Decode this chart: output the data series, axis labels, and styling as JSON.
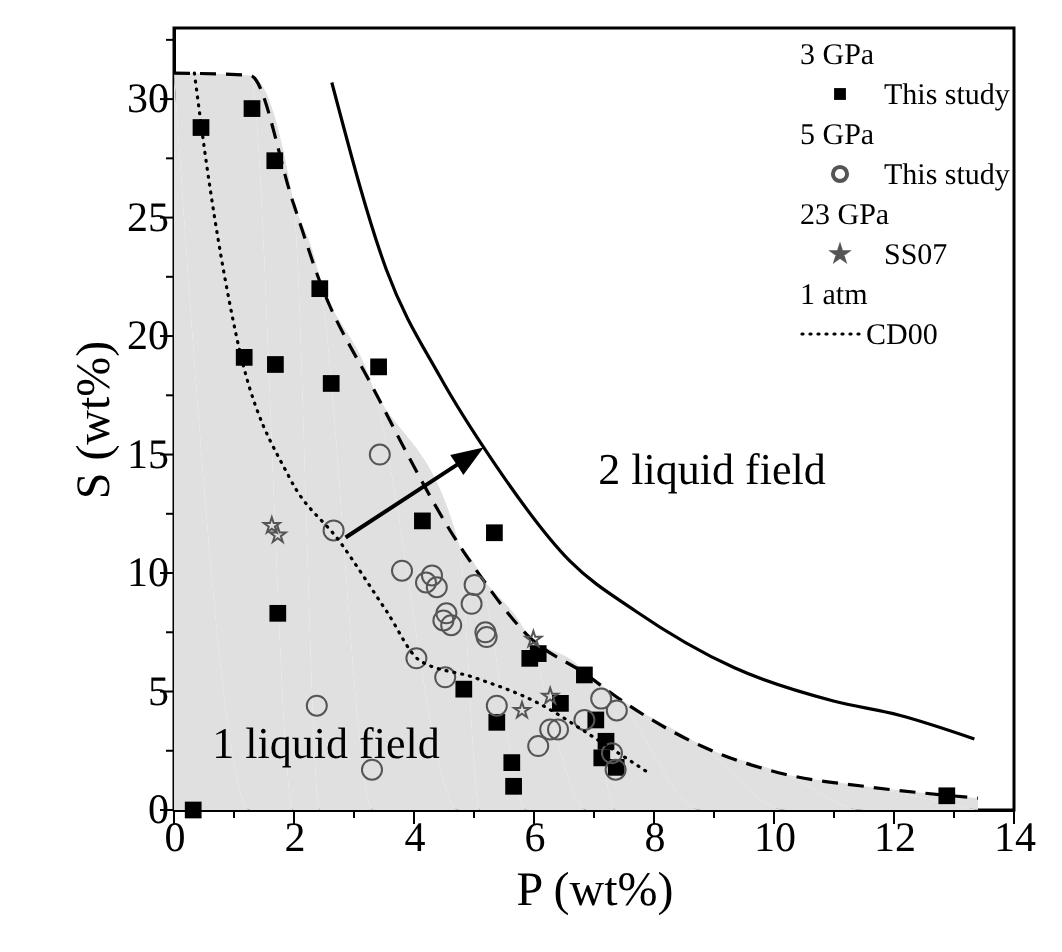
{
  "chart_data": {
    "type": "scatter",
    "xlabel": "P (wt%)",
    "ylabel": "S (wt%)",
    "xlim": [
      0,
      14
    ],
    "xticks": [
      0,
      {
        "value": 1,
        "label": null
      },
      2,
      {
        "value": 3,
        "label": null
      },
      4,
      {
        "value": 5,
        "label": null
      },
      6,
      {
        "value": 7,
        "label": null
      },
      8,
      {
        "value": 9,
        "label": null
      },
      10,
      {
        "value": 11,
        "label": null
      },
      12,
      {
        "value": 13,
        "label": null
      },
      14
    ],
    "ylim": [
      0,
      33
    ],
    "yticks": [
      0,
      {
        "value": 2.5,
        "label": null
      },
      5,
      {
        "value": 7.5,
        "label": null
      },
      10,
      {
        "value": 12.5,
        "label": null
      },
      15,
      {
        "value": 17.5,
        "label": null
      },
      20,
      {
        "value": 22.5,
        "label": null
      },
      25,
      {
        "value": 27.5,
        "label": null
      },
      30,
      {
        "value": 32.5,
        "label": null
      }
    ],
    "grid": false,
    "legend": "top right",
    "annotations": [
      "2 liquid field",
      "1 liquid field",
      "3 GPa",
      "5 GPa",
      "23 GPa",
      "1 atm"
    ],
    "series": [
      {
        "type": "area",
        "color": "#e0e0e0",
        "line_style": "dashed",
        "x": [
          0,
          1.27,
          1.99,
          2.43,
          3.32,
          4.75,
          5.1,
          5.88,
          6.88,
          7.36,
          8.79,
          10.2,
          11.5,
          13.4
        ],
        "values": [
          31.1,
          31.0,
          25.6,
          22.3,
          17.8,
          11.2,
          9.9,
          7.4,
          5.7,
          4.8,
          2.7,
          1.5,
          1.0,
          0.5
        ]
      },
      {
        "type": "line",
        "color": "#000000",
        "line_style": "solid",
        "x": [
          2.63,
          3.54,
          4.43,
          5.32,
          6.6,
          7.69,
          9.34,
          10.99,
          12.09,
          13.34
        ],
        "values": [
          30.7,
          22.8,
          18.3,
          14.7,
          10.5,
          8.4,
          6.0,
          4.6,
          4.0,
          3.0
        ]
      },
      {
        "name": "This study",
        "color": "#000000",
        "marker": "square",
        "x": [
          0.45,
          1.3,
          1.68,
          2.43,
          1.17,
          1.69,
          2.62,
          3.41,
          4.14,
          5.34,
          1.73,
          4.83,
          5.38,
          5.63,
          5.66,
          5.93,
          6.07,
          6.44,
          6.84,
          7.03,
          7.2,
          7.13,
          7.37,
          12.88,
          0.32
        ],
        "values": [
          28.8,
          29.6,
          27.4,
          22.0,
          19.1,
          18.8,
          18.0,
          18.7,
          12.2,
          11.7,
          8.3,
          5.1,
          3.7,
          2.0,
          1.0,
          6.4,
          6.6,
          4.5,
          5.7,
          3.8,
          2.9,
          2.2,
          1.8,
          0.6,
          0.0
        ]
      },
      {
        "name": "This study",
        "color": "#555555",
        "marker": "circle",
        "x": [
          3.43,
          2.66,
          3.8,
          4.3,
          4.2,
          4.38,
          5.01,
          4.96,
          4.54,
          4.49,
          4.62,
          5.19,
          5.21,
          4.04,
          4.52,
          5.38,
          2.38,
          3.3,
          6.07,
          6.27,
          6.4,
          6.84,
          7.12,
          7.38,
          7.3,
          7.36
        ],
        "values": [
          15.0,
          11.8,
          10.1,
          9.9,
          9.6,
          9.4,
          9.5,
          8.7,
          8.3,
          8.0,
          7.8,
          7.5,
          7.3,
          6.4,
          5.6,
          4.4,
          4.4,
          1.7,
          2.7,
          3.4,
          3.4,
          3.8,
          4.7,
          4.2,
          2.4,
          1.7
        ]
      },
      {
        "name": "SS07",
        "color": "#555555",
        "marker": "star",
        "x": [
          1.63,
          1.73,
          5.99,
          6.27,
          5.8
        ],
        "values": [
          12.0,
          11.6,
          7.2,
          4.8,
          4.2
        ]
      },
      {
        "type": "line",
        "name": "CD00",
        "color": "#000000",
        "line_style": "dotted",
        "x": [
          0.34,
          0.54,
          1.04,
          1.93,
          2.77,
          3.54,
          4.1,
          4.99,
          6.0,
          7.1,
          7.95
        ],
        "values": [
          31.1,
          27.3,
          20.0,
          14.0,
          11.3,
          8.4,
          6.3,
          5.6,
          4.6,
          2.9,
          1.5
        ]
      }
    ]
  }
}
